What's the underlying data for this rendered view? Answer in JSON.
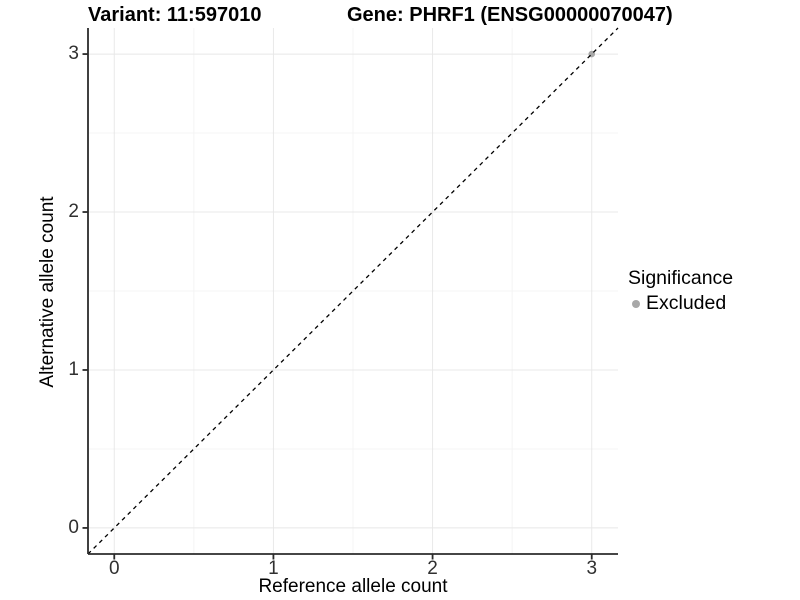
{
  "chart_data": {
    "type": "scatter",
    "title_left": "Variant: 11:597010",
    "title_right": "Gene: PHRF1 (ENSG00000070047)",
    "xlabel": "Reference allele count",
    "ylabel": "Alternative allele count",
    "x_ticks": [
      0,
      1,
      2,
      3
    ],
    "y_ticks": [
      0,
      1,
      2,
      3
    ],
    "x_minor_ticks": [
      0.5,
      1.5,
      2.5
    ],
    "y_minor_ticks": [
      0.5,
      1.5,
      2.5
    ],
    "xlim": [
      -0.165,
      3.165
    ],
    "ylim": [
      -0.165,
      3.165
    ],
    "grid": true,
    "reference_line": {
      "type": "identity",
      "slope": 1,
      "intercept": 0,
      "style": "dashed",
      "color": "#000000"
    },
    "series": [
      {
        "name": "Excluded",
        "points": [
          {
            "x": 3,
            "y": 3
          }
        ],
        "color": "#a8a8a8"
      }
    ],
    "legend": {
      "title": "Significance",
      "position": "right",
      "items": [
        {
          "label": "Excluded",
          "color": "#a8a8a8"
        }
      ]
    },
    "colors": {
      "point": "#a8a8a8",
      "grid_major": "#e8e8e8",
      "grid_minor": "#f4f4f4",
      "axis_line": "#2b2b2b",
      "tick_text": "#303030",
      "background": "#ffffff"
    }
  }
}
